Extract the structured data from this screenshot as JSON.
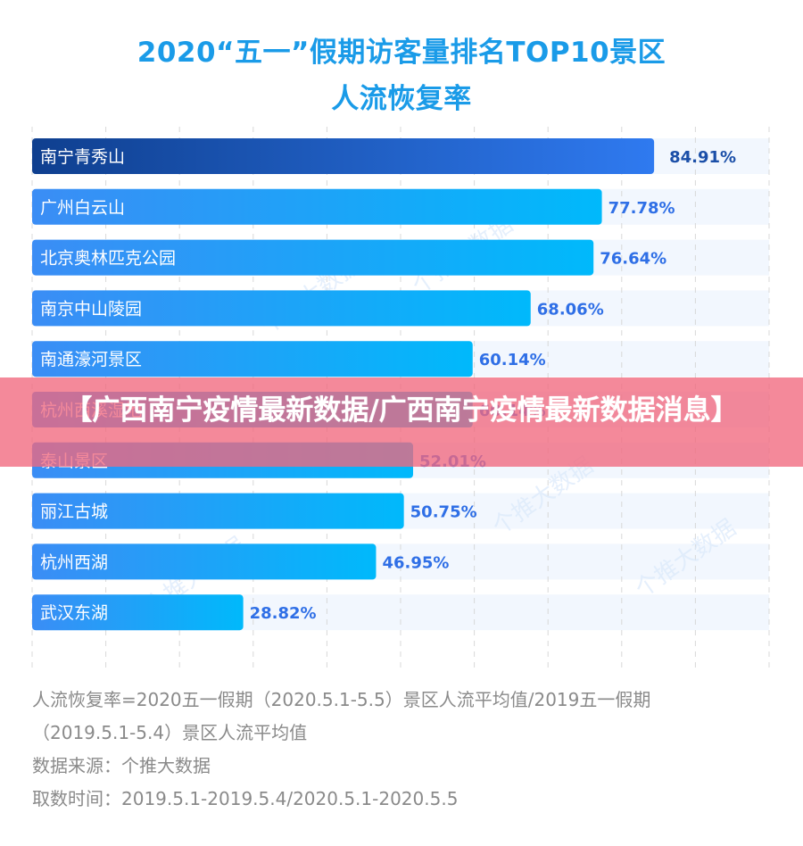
{
  "header": {
    "title_line1": "2020“五一”假期访客量排名TOP10景区",
    "title_line2": "人流恢复率"
  },
  "colors": {
    "title": "#1a9be8",
    "top_bar_start": "#0f3f8f",
    "top_bar_end": "#2f7af0",
    "bar_start": "#3b8df5",
    "bar_end": "#00b9fb",
    "top_value_label": "#1b4fa8",
    "value_label": "#2f6fe6",
    "track": "#f2f7fe",
    "grid": "#d8d8d8",
    "banner": "#f1687e",
    "notes": "#8a8a8a"
  },
  "chart_data": {
    "type": "bar",
    "orientation": "horizontal",
    "title": "2020“五一”假期访客量排名TOP10景区人流恢复率",
    "xlabel": "",
    "ylabel": "",
    "xlim": [
      0,
      100
    ],
    "grid": true,
    "unit": "%",
    "categories": [
      "南宁青秀山",
      "广州白云山",
      "北京奥林匹克公园",
      "南京中山陵园",
      "南通濠河景区",
      "杭州西溪湿地",
      "泰山景区",
      "丽江古城",
      "杭州西湖",
      "武汉东湖"
    ],
    "values": [
      84.91,
      77.78,
      76.64,
      68.06,
      60.14,
      60.14,
      52.01,
      50.75,
      46.95,
      28.82
    ],
    "value_labels": [
      "84.91%",
      "77.78%",
      "76.64%",
      "68.06%",
      "60.14%",
      "60.14%",
      "52.01%",
      "50.75%",
      "46.95%",
      "28.82%"
    ],
    "highlight_index": 0,
    "watermark": "个推大数据"
  },
  "notes": {
    "line1": "人流恢复率=2020五一假期（2020.5.1-5.5）景区人流平均值/2019五一假期",
    "line2": "（2019.5.1-5.4）景区人流平均值",
    "line3": "数据来源：个推大数据",
    "line4": "取数时间：2019.5.1-2019.5.4/2020.5.1-2020.5.5"
  },
  "banner": {
    "text": "【广西南宁疫情最新数据/广西南宁疫情最新数据消息】"
  }
}
